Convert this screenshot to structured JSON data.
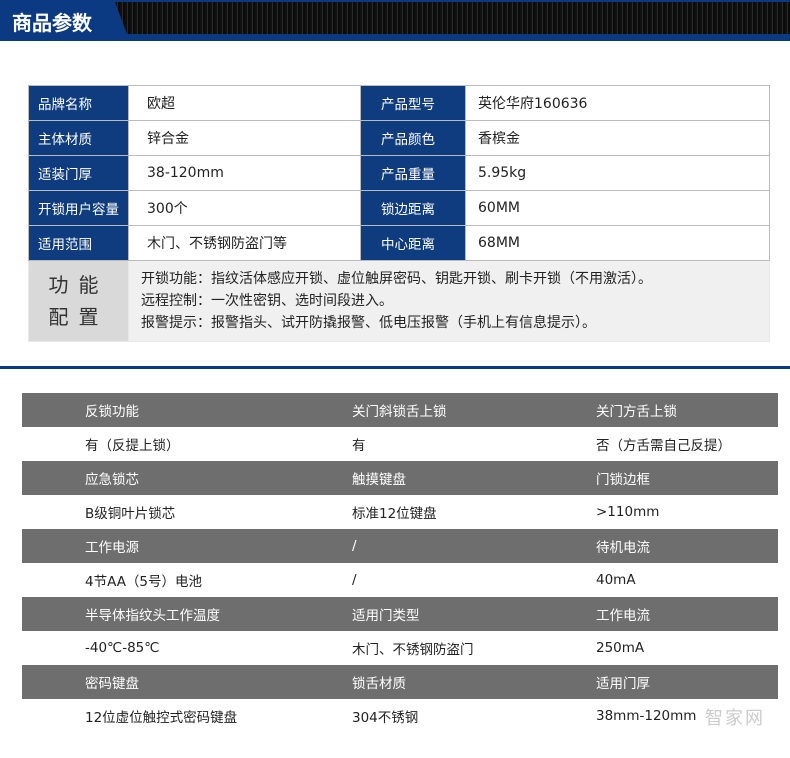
{
  "header": {
    "title": "商品参数"
  },
  "specs": [
    {
      "l1": "品牌名称",
      "v1": "欧超",
      "l2": "产品型号",
      "v2": "英伦华府160636"
    },
    {
      "l1": "主体材质",
      "v1": "锌合金",
      "l2": "产品颜色",
      "v2": "香槟金"
    },
    {
      "l1": "适装门厚",
      "v1": "38-120mm",
      "l2": "产品重量",
      "v2": "5.95kg"
    },
    {
      "l1": "开锁用户容量",
      "v1": "300个",
      "l2": "锁边距离",
      "v2": "60MM"
    },
    {
      "l1": "适用范围",
      "v1": "木门、不锈钢防盗门等",
      "l2": "中心距离",
      "v2": "68MM"
    }
  ],
  "features": {
    "label_line1": "功能",
    "label_line2": "配置",
    "lines": [
      "开锁功能：指纹活体感应开锁、虚位触屏密码、钥匙开锁、刷卡开锁（不用激活）。",
      "远程控制：一次性密钥、选时间段进入。",
      "报警提示：报警指头、试开防撬报警、低电压报警（手机上有信息提示）。"
    ]
  },
  "details": [
    {
      "header": [
        "反锁功能",
        "关门斜锁舌上锁",
        "关门方舌上锁"
      ],
      "value": [
        "有（反提上锁）",
        "有",
        "否（方舌需自己反提）"
      ]
    },
    {
      "header": [
        "应急锁芯",
        "触摸键盘",
        "门锁边框"
      ],
      "value": [
        "B级铜叶片锁芯",
        "标准12位键盘",
        ">110mm"
      ]
    },
    {
      "header": [
        "工作电源",
        "/",
        "待机电流"
      ],
      "value": [
        "4节AA（5号）电池",
        "/",
        "40mA"
      ]
    },
    {
      "header": [
        "半导体指纹头工作温度",
        "适用门类型",
        "工作电流"
      ],
      "value": [
        "-40℃-85℃",
        "木门、不锈钢防盗门",
        "250mA"
      ]
    },
    {
      "header": [
        "密码键盘",
        "锁舌材质",
        "适用门厚"
      ],
      "value": [
        "12位虚位触控式密码键盘",
        "304不锈钢",
        "38mm-120mm"
      ]
    }
  ],
  "watermark": "智家网",
  "colors": {
    "brand_blue": "#0c3a82",
    "header_gray": "#6e6e6e"
  }
}
